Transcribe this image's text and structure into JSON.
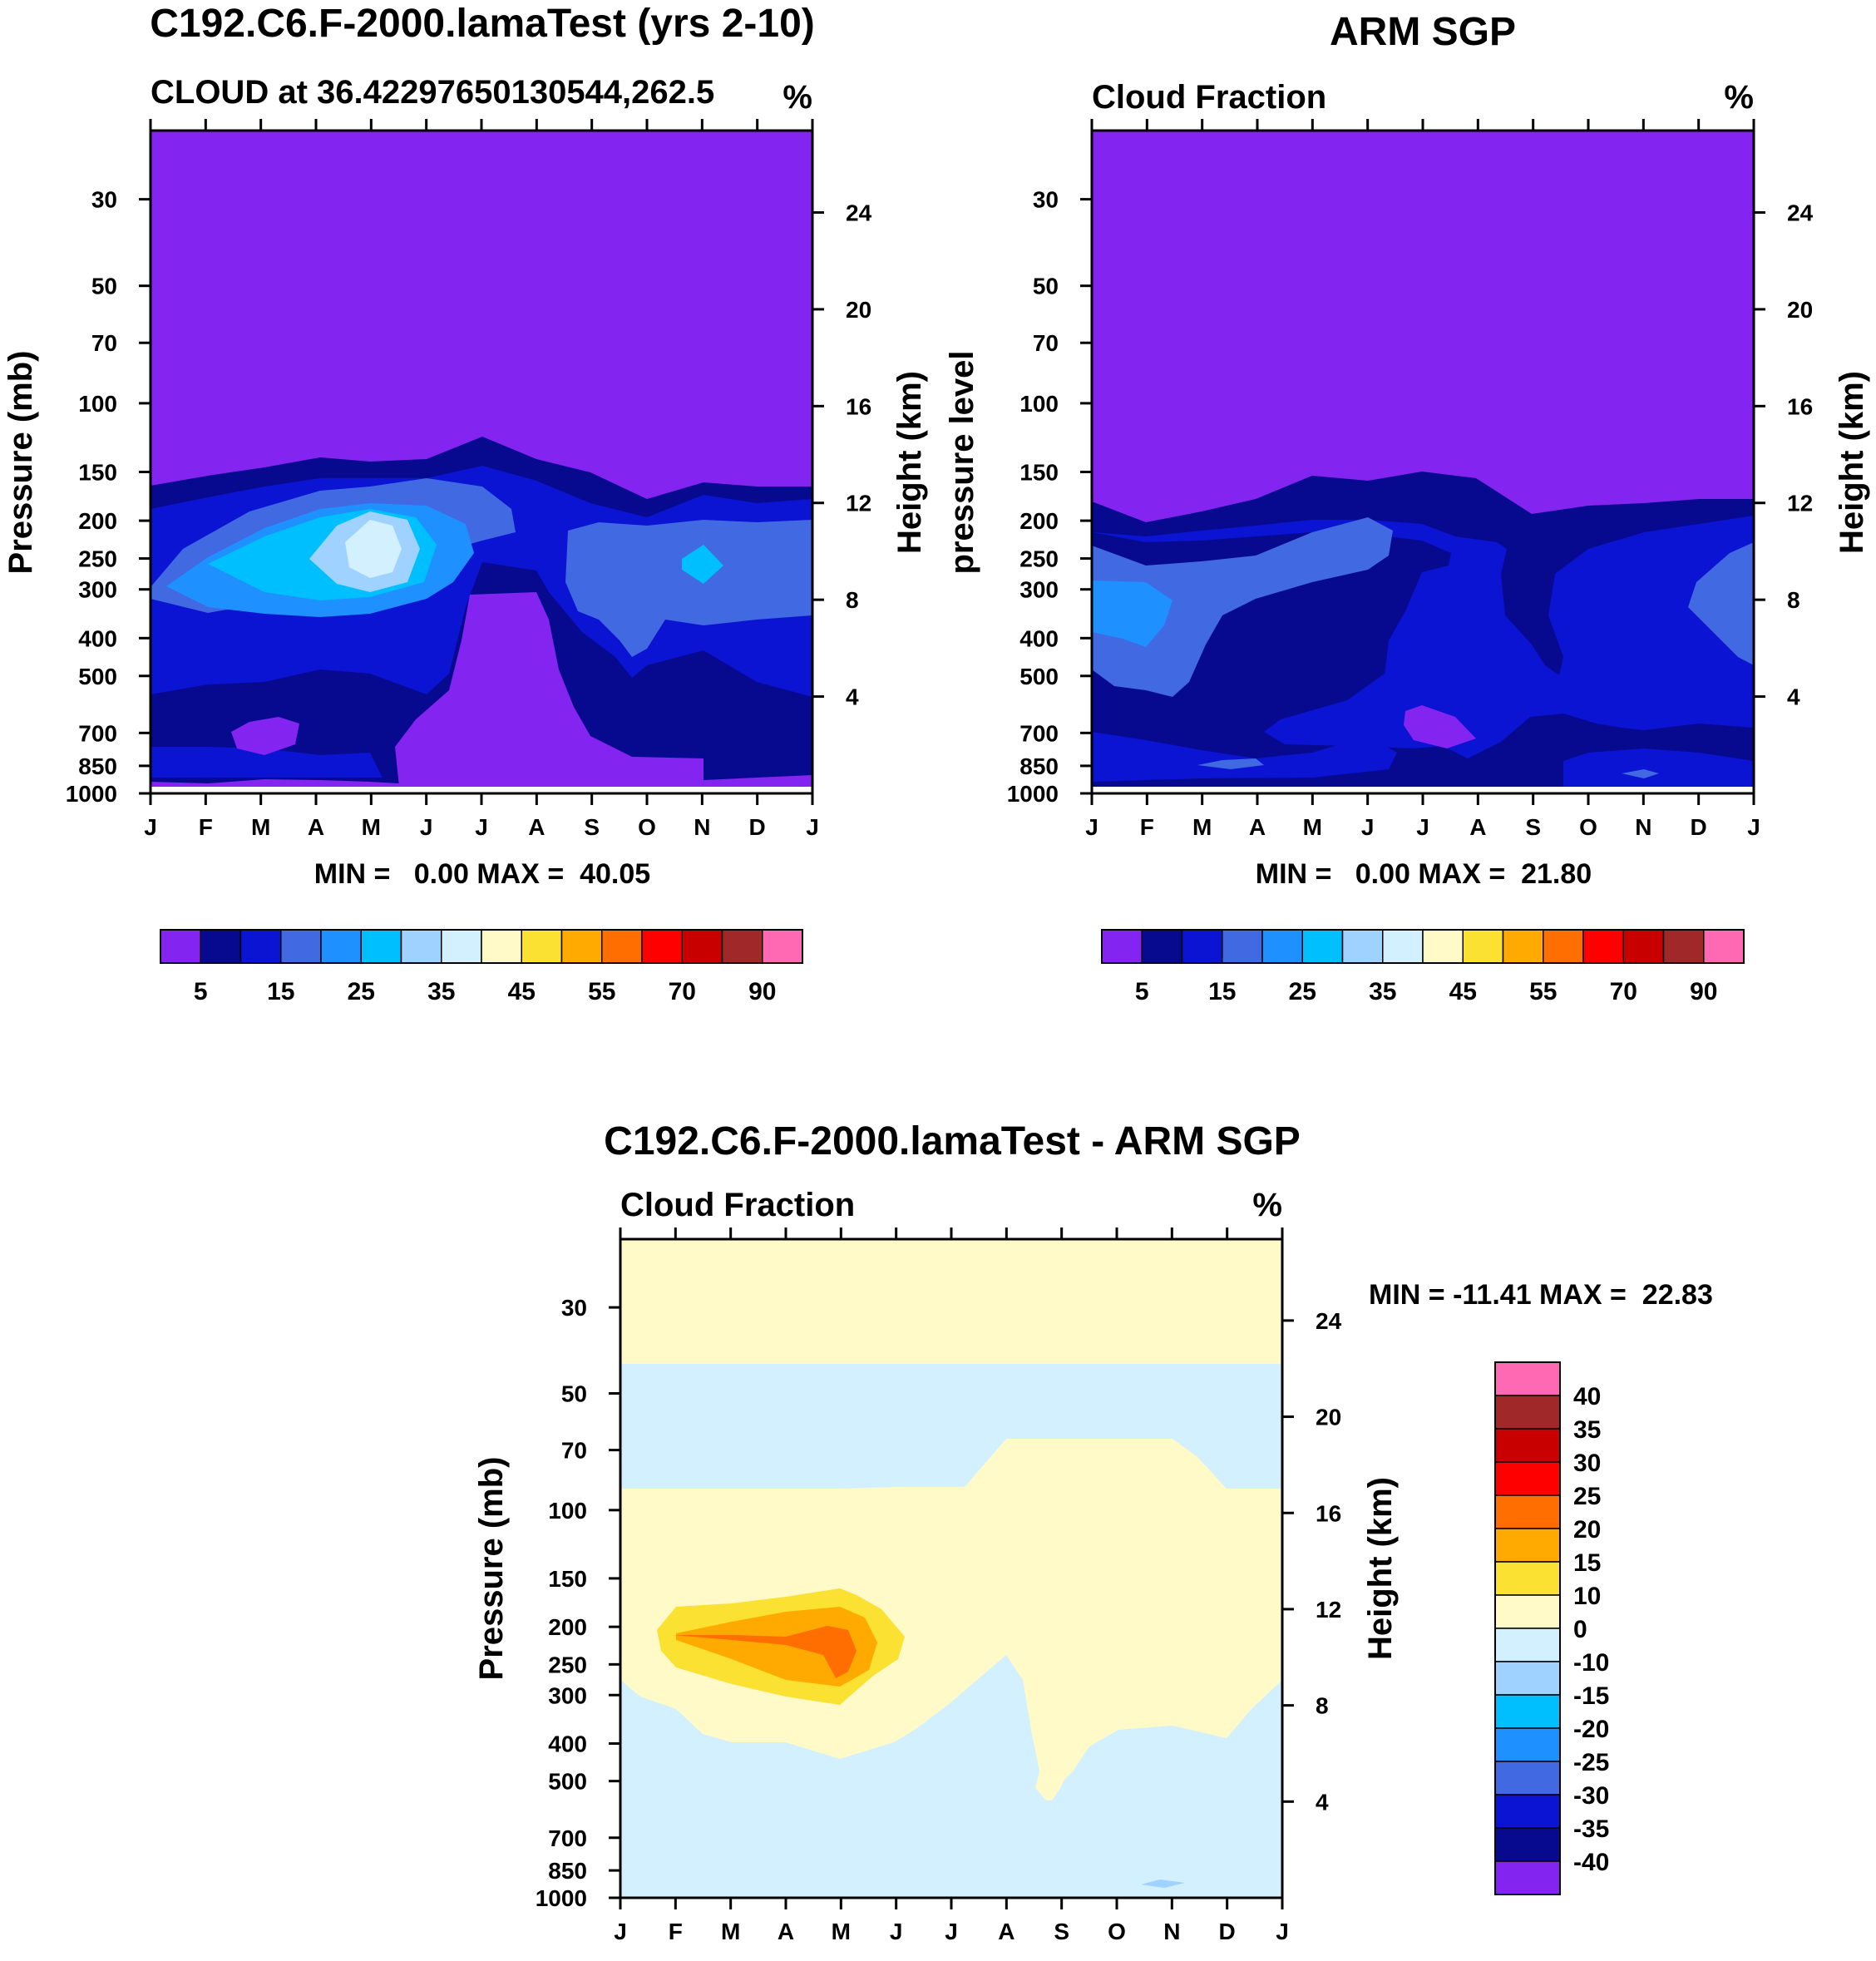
{
  "chart_data": [
    {
      "type": "contour",
      "title": "C192.C6.F-2000.lamaTest (yrs 2-10)",
      "subtitle_left": "CLOUD at 36.42297650130544,262.5",
      "subtitle_right": "%",
      "ylabel": "Pressure (mb)",
      "y2label": "Height (km)",
      "x_ticks": [
        "J",
        "F",
        "M",
        "A",
        "M",
        "J",
        "J",
        "A",
        "S",
        "O",
        "N",
        "D",
        "J"
      ],
      "y_ticks": [
        "30",
        "50",
        "70",
        "100",
        "150",
        "200",
        "250",
        "300",
        "400",
        "500",
        "700",
        "850",
        "1000"
      ],
      "y2_ticks": [
        "24",
        "20",
        "16",
        "12",
        "8",
        "4"
      ],
      "stats": "MIN =   0.00 MAX =  40.05",
      "min": 0.0,
      "max": 40.05,
      "colorbar": {
        "orientation": "horizontal",
        "colors": [
          "#8424f0",
          "#070a8f",
          "#0a14d2",
          "#4169e1",
          "#1e90ff",
          "#00bfff",
          "#a0d2ff",
          "#d2f0ff",
          "#fffac8",
          "#fae132",
          "#ffaa00",
          "#ff6e00",
          "#ff0000",
          "#c80000",
          "#a02828",
          "#ff69b4"
        ],
        "labels": [
          "5",
          "15",
          "25",
          "35",
          "45",
          "55",
          "70",
          "90"
        ]
      },
      "regions": [
        {
          "level": "5-10",
          "color": "#070a8f",
          "approx": "band above ~150-180 mb and low-level 600-900 mb"
        },
        {
          "level": "10-15",
          "color": "#0a14d2",
          "approx": "upper and mid troposphere"
        },
        {
          "level": "15-20",
          "color": "#4169e1",
          "approx": "200-400 mb, Jan-Jul and Sep-Dec"
        },
        {
          "level": "20-25",
          "color": "#1e90ff",
          "approx": "200-350 mb, Feb-Jun"
        },
        {
          "level": "25-30",
          "color": "#00bfff",
          "approx": "around 250 mb, Mar-Jun and Nov"
        },
        {
          "level": "30-35",
          "color": "#a0d2ff",
          "approx": "around 250 mb, Apr-May"
        },
        {
          "level": "35-45",
          "color": "#d2f0ff",
          "approx": "around 250 mb, May (max 40.05)"
        }
      ]
    },
    {
      "type": "contour",
      "title": "ARM SGP",
      "subtitle_left": "Cloud Fraction",
      "subtitle_right": "%",
      "ylabel": "pressure level",
      "y2label": "Height (km)",
      "x_ticks": [
        "J",
        "F",
        "M",
        "A",
        "M",
        "J",
        "J",
        "A",
        "S",
        "O",
        "N",
        "D",
        "J"
      ],
      "y_ticks": [
        "30",
        "50",
        "70",
        "100",
        "150",
        "200",
        "250",
        "300",
        "400",
        "500",
        "700",
        "850",
        "1000"
      ],
      "y2_ticks": [
        "24",
        "20",
        "16",
        "12",
        "8",
        "4"
      ],
      "stats": "MIN =   0.00 MAX =  21.80",
      "min": 0.0,
      "max": 21.8,
      "colorbar": {
        "orientation": "horizontal",
        "colors": [
          "#8424f0",
          "#070a8f",
          "#0a14d2",
          "#4169e1",
          "#1e90ff",
          "#00bfff",
          "#a0d2ff",
          "#d2f0ff",
          "#fffac8",
          "#fae132",
          "#ffaa00",
          "#ff6e00",
          "#ff0000",
          "#c80000",
          "#a02828",
          "#ff69b4"
        ],
        "labels": [
          "5",
          "15",
          "25",
          "35",
          "45",
          "55",
          "70",
          "90"
        ]
      },
      "regions": [
        {
          "level": "5-10",
          "color": "#070a8f",
          "approx": "200 mb band and Jul-Sep mid/low levels"
        },
        {
          "level": "10-15",
          "color": "#0a14d2",
          "approx": "250-900 mb most months"
        },
        {
          "level": "15-20",
          "color": "#4169e1",
          "approx": "250-500 mb Jan-Jun, Dec"
        },
        {
          "level": "20-25",
          "color": "#1e90ff",
          "approx": "300-400 mb, Jan (max 21.80)"
        }
      ]
    },
    {
      "type": "contour",
      "title": "C192.C6.F-2000.lamaTest - ARM SGP",
      "subtitle_left": "Cloud Fraction",
      "subtitle_right": "%",
      "ylabel": "Pressure (mb)",
      "y2label": "Height (km)",
      "x_ticks": [
        "J",
        "F",
        "M",
        "A",
        "M",
        "J",
        "J",
        "A",
        "S",
        "O",
        "N",
        "D",
        "J"
      ],
      "y_ticks": [
        "30",
        "50",
        "70",
        "100",
        "150",
        "200",
        "250",
        "300",
        "400",
        "500",
        "700",
        "850",
        "1000"
      ],
      "y2_ticks": [
        "24",
        "20",
        "16",
        "12",
        "8",
        "4"
      ],
      "stats": "MIN = -11.41 MAX =  22.83",
      "min": -11.41,
      "max": 22.83,
      "colorbar": {
        "orientation": "vertical",
        "colors_top_to_bottom": [
          "#ff69b4",
          "#a02828",
          "#c80000",
          "#ff0000",
          "#ff6e00",
          "#ffaa00",
          "#fae132",
          "#fffac8",
          "#d2f0ff",
          "#a0d2ff",
          "#00bfff",
          "#1e90ff",
          "#4169e1",
          "#0a14d2",
          "#070a8f",
          "#8424f0"
        ],
        "labels_top_to_bottom": [
          "40",
          "35",
          "30",
          "25",
          "20",
          "15",
          "10",
          "0",
          "-10",
          "-15",
          "-20",
          "-25",
          "-30",
          "-35",
          "-40"
        ]
      },
      "regions": [
        {
          "level": "0-10",
          "color": "#fffac8",
          "approx": "above 50 mb; 100-300 mb all months; Aug-Oct below 300 mb"
        },
        {
          "level": "-10-0",
          "color": "#d2f0ff",
          "approx": "50-100 mb; below ~350 mb except Aug-Oct"
        },
        {
          "level": "10-15",
          "color": "#fae132",
          "approx": "200-300 mb, Feb-Jun"
        },
        {
          "level": "15-20",
          "color": "#ffaa00",
          "approx": "200-280 mb, Feb-May"
        },
        {
          "level": "20-25",
          "color": "#ff6e00",
          "approx": "around 250 mb, May (max 22.83)"
        },
        {
          "level": "-15--10",
          "color": "#a0d2ff",
          "approx": "near 880 mb, Nov (min -11.41)"
        }
      ]
    }
  ]
}
